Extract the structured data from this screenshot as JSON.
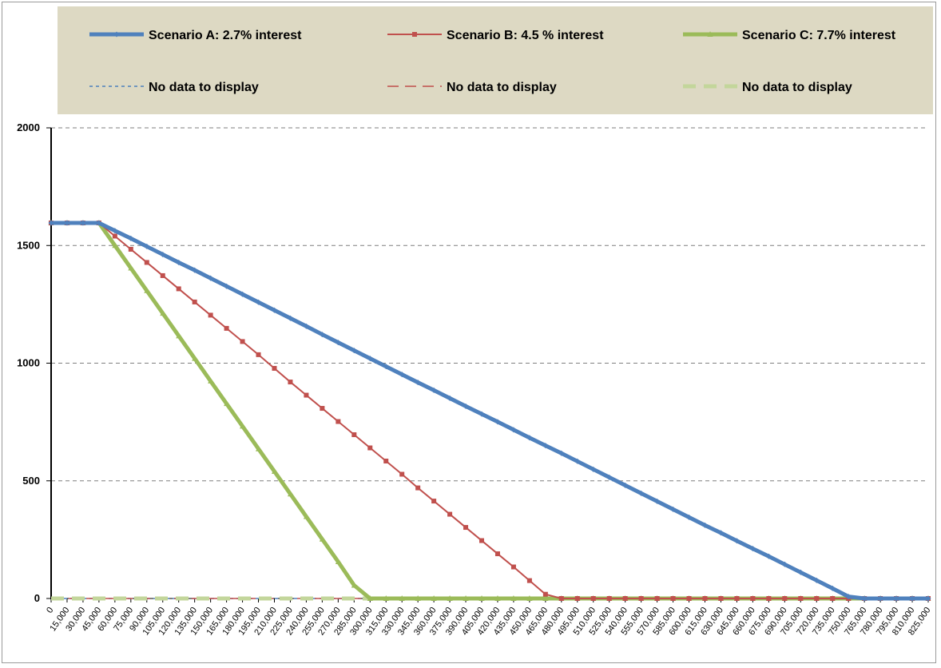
{
  "chart_data": {
    "type": "line",
    "title": "",
    "xlabel": "",
    "ylabel": "",
    "ylim": [
      0,
      2000
    ],
    "y_ticks": [
      "0",
      "500",
      "1000",
      "1500",
      "2000"
    ],
    "grid": "horizontal dashed",
    "legend_position": "top",
    "x_labels": [
      "0",
      "15,000",
      "30,000",
      "45,000",
      "60,000",
      "75,000",
      "90,000",
      "105,000",
      "120,000",
      "135,000",
      "150,000",
      "165,000",
      "180,000",
      "195,000",
      "210,000",
      "225,000",
      "240,000",
      "255,000",
      "270,000",
      "285,000",
      "300,000",
      "315,000",
      "330,000",
      "345,000",
      "360,000",
      "375,000",
      "390,000",
      "405,000",
      "420,000",
      "435,000",
      "450,000",
      "465,000",
      "480,000",
      "495,000",
      "510,000",
      "525,000",
      "540,000",
      "555,000",
      "570,000",
      "585,000",
      "600,000",
      "615,000",
      "630,000",
      "645,000",
      "660,000",
      "675,000",
      "690,000",
      "705,000",
      "720,000",
      "735,000",
      "750,000",
      "765,000",
      "780,000",
      "795,000",
      "810,000",
      "825,000"
    ],
    "x": [
      0,
      15000,
      30000,
      45000,
      60000,
      75000,
      90000,
      105000,
      120000,
      135000,
      150000,
      165000,
      180000,
      195000,
      210000,
      225000,
      240000,
      255000,
      270000,
      285000,
      300000,
      315000,
      330000,
      345000,
      360000,
      375000,
      390000,
      405000,
      420000,
      435000,
      450000,
      465000,
      480000,
      495000,
      510000,
      525000,
      540000,
      555000,
      570000,
      585000,
      600000,
      615000,
      630000,
      645000,
      660000,
      675000,
      690000,
      705000,
      720000,
      735000,
      750000,
      765000,
      780000,
      795000,
      810000,
      825000
    ],
    "series": [
      {
        "name": "Scenario A: 2.7% interest",
        "color": "#4f81bd",
        "style": "thick-solid",
        "marker": "diamond",
        "values": [
          1596,
          1596,
          1596,
          1596,
          1563,
          1530,
          1496,
          1462,
          1428,
          1395,
          1361,
          1327,
          1293,
          1259,
          1225,
          1191,
          1157,
          1122,
          1088,
          1054,
          1020,
          986,
          952,
          918,
          885,
          851,
          817,
          784,
          751,
          717,
          683,
          650,
          617,
          583,
          549,
          515,
          481,
          447,
          413,
          379,
          345,
          311,
          279,
          245,
          212,
          179,
          145,
          111,
          77,
          43,
          8,
          0,
          0,
          0,
          0,
          0
        ]
      },
      {
        "name": "Scenario B: 4.5 % interest",
        "color": "#c0504d",
        "style": "solid",
        "marker": "square",
        "values": [
          1596,
          1596,
          1596,
          1596,
          1540,
          1484,
          1428,
          1372,
          1316,
          1260,
          1204,
          1148,
          1092,
          1036,
          978,
          920,
          864,
          808,
          752,
          696,
          640,
          584,
          528,
          470,
          414,
          358,
          302,
          246,
          190,
          134,
          76,
          18,
          0,
          0,
          0,
          0,
          0,
          0,
          0,
          0,
          0,
          0,
          0,
          0,
          0,
          0,
          0,
          0,
          0,
          0,
          0,
          0,
          0,
          0,
          0,
          0
        ]
      },
      {
        "name": "Scenario C: 7.7% interest",
        "color": "#9bbb59",
        "style": "thick-solid",
        "marker": "triangle",
        "values": [
          1596,
          1596,
          1596,
          1596,
          1500,
          1404,
          1308,
          1212,
          1116,
          1020,
          924,
          828,
          732,
          636,
          540,
          444,
          348,
          252,
          156,
          56,
          0,
          0,
          0,
          0,
          0,
          0,
          0,
          0,
          0,
          0,
          0,
          0,
          0,
          0,
          0,
          0,
          0,
          0,
          0,
          0,
          0,
          0,
          0,
          0,
          0,
          0,
          0,
          0,
          0,
          0,
          0,
          0,
          0,
          0,
          0,
          0
        ]
      },
      {
        "name": "No data to display",
        "color": "#4f81bd",
        "style": "dotted",
        "values": [
          0,
          0,
          0,
          0,
          0,
          0,
          0,
          0,
          0,
          0,
          0,
          0,
          0,
          0,
          0,
          0,
          0,
          0,
          0,
          0,
          0,
          0,
          0,
          0,
          0,
          0,
          0,
          0,
          0,
          0,
          0,
          0,
          0,
          0,
          0,
          0,
          0,
          0,
          0,
          0,
          0,
          0,
          0,
          0,
          0,
          0,
          0,
          0,
          0,
          0,
          0,
          0,
          0,
          0,
          0,
          0
        ]
      },
      {
        "name": "No data to display",
        "color": "#c0504d",
        "style": "long-dash",
        "values": [
          0,
          0,
          0,
          0,
          0,
          0,
          0,
          0,
          0,
          0,
          0,
          0,
          0,
          0,
          0,
          0,
          0,
          0,
          0,
          0,
          0,
          0,
          0,
          0,
          0,
          0,
          0,
          0,
          0,
          0,
          0,
          0,
          0,
          0,
          0,
          0,
          0,
          0,
          0,
          0,
          0,
          0,
          0,
          0,
          0,
          0,
          0,
          0,
          0,
          0,
          0,
          0,
          0,
          0,
          0,
          0
        ]
      },
      {
        "name": "No data to display",
        "color": "#c3d69b",
        "style": "thick-dash",
        "values": [
          0,
          0,
          0,
          0,
          0,
          0,
          0,
          0,
          0,
          0,
          0,
          0,
          0,
          0,
          0,
          0,
          0,
          0,
          0,
          0,
          0,
          0,
          0,
          0,
          0,
          0,
          0,
          0,
          0,
          0,
          0,
          0,
          0,
          0,
          0,
          0,
          0,
          0,
          0,
          0,
          0,
          0,
          0,
          0,
          0,
          0,
          0,
          0,
          0,
          0,
          0,
          0,
          0,
          0,
          0,
          0
        ]
      }
    ]
  }
}
